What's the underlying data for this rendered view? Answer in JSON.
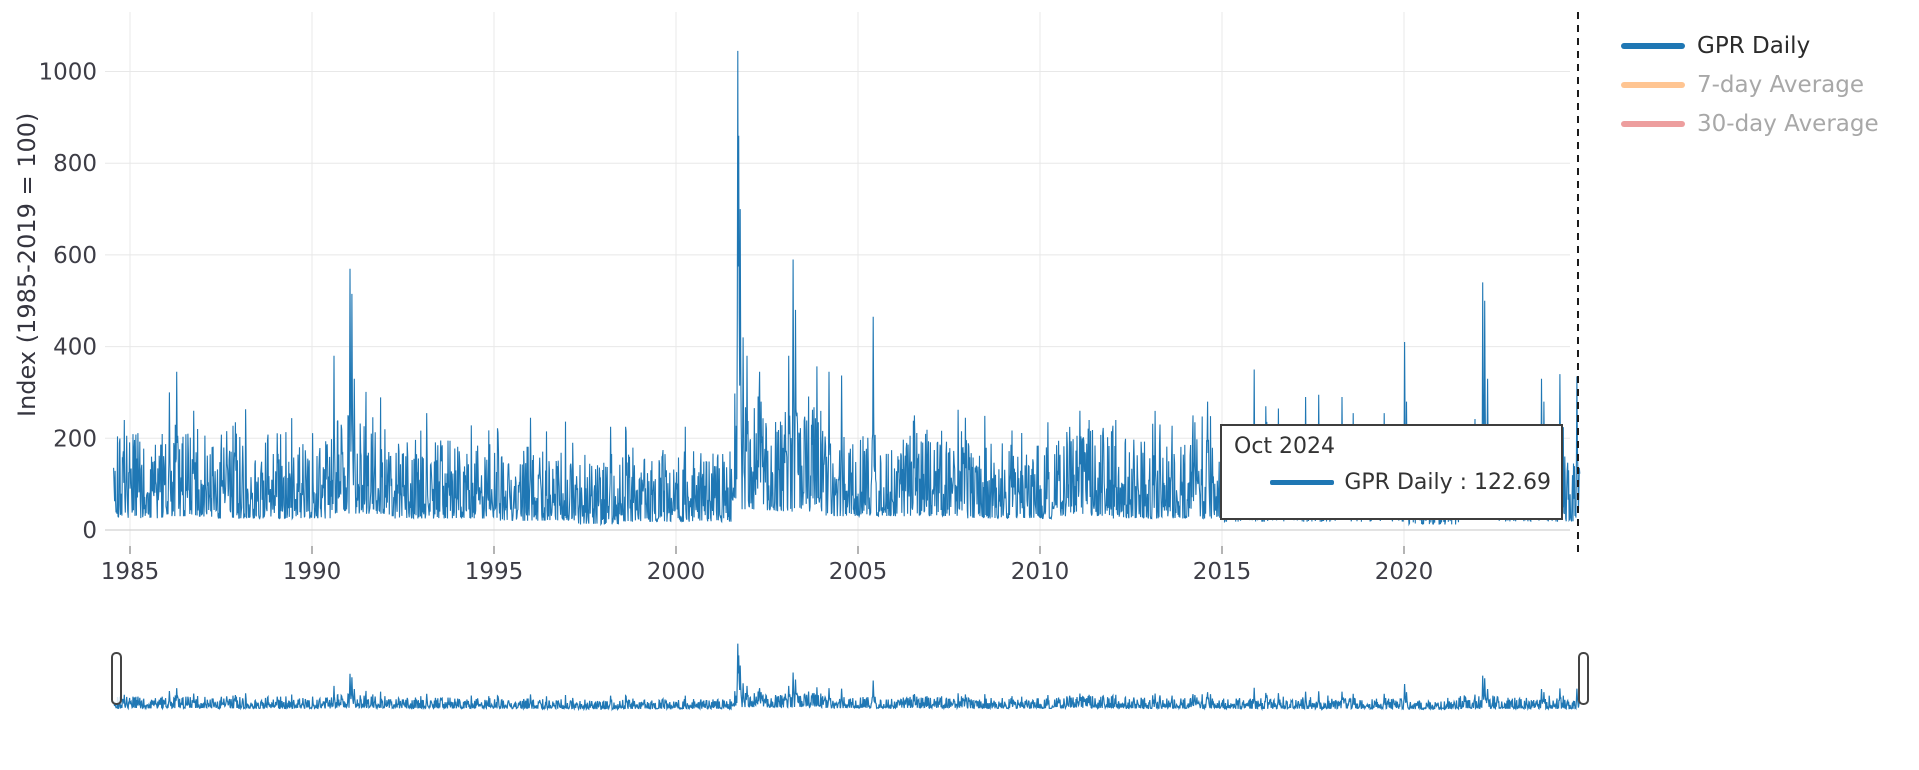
{
  "chart_data": {
    "type": "line",
    "title": "",
    "xlabel": "",
    "ylabel": "Index (1985-2019 = 100)",
    "x_ticks": [
      1985,
      1990,
      1995,
      2000,
      2005,
      2010,
      2015,
      2020
    ],
    "y_ticks": [
      0,
      200,
      400,
      600,
      800,
      1000
    ],
    "ylim": [
      -35,
      1130
    ],
    "x_domain": [
      1984.55,
      2025.1
    ],
    "grid": true,
    "legend_position": "top-right",
    "rangeslider": true,
    "dashed_boundary_year": 2024.78,
    "series": [
      {
        "name": "GPR Daily",
        "color": "#1f77b4",
        "visible": true
      },
      {
        "name": "7-day Average",
        "color": "#ff7f0e",
        "visible": false
      },
      {
        "name": "30-day Average",
        "color": "#d62728",
        "visible": false
      }
    ],
    "gpr_daily": {
      "start_year": 1984.55,
      "end_year": 2024.83,
      "last_value": 122.69,
      "samples_per_year": 75,
      "era_bands": [
        {
          "from": 1984.55,
          "to": 1986.0,
          "lo": 25,
          "hi": 215
        },
        {
          "from": 1986.0,
          "to": 1987.0,
          "lo": 30,
          "hi": 250
        },
        {
          "from": 1987.0,
          "to": 1990.5,
          "lo": 25,
          "hi": 212
        },
        {
          "from": 1990.5,
          "to": 1992.0,
          "lo": 35,
          "hi": 255
        },
        {
          "from": 1992.0,
          "to": 1995.0,
          "lo": 25,
          "hi": 200
        },
        {
          "from": 1995.0,
          "to": 1997.0,
          "lo": 20,
          "hi": 185
        },
        {
          "from": 1997.0,
          "to": 1998.5,
          "lo": 12,
          "hi": 150
        },
        {
          "from": 1998.5,
          "to": 2001.55,
          "lo": 18,
          "hi": 175
        },
        {
          "from": 2001.55,
          "to": 2002.5,
          "lo": 45,
          "hi": 300
        },
        {
          "from": 2002.5,
          "to": 2004.0,
          "lo": 40,
          "hi": 275
        },
        {
          "from": 2004.0,
          "to": 2008.0,
          "lo": 30,
          "hi": 220
        },
        {
          "from": 2008.0,
          "to": 2010.5,
          "lo": 25,
          "hi": 195
        },
        {
          "from": 2010.5,
          "to": 2012.0,
          "lo": 30,
          "hi": 228
        },
        {
          "from": 2012.0,
          "to": 2015.0,
          "lo": 25,
          "hi": 200
        },
        {
          "from": 2015.0,
          "to": 2020.0,
          "lo": 18,
          "hi": 188
        },
        {
          "from": 2020.0,
          "to": 2021.5,
          "lo": 12,
          "hi": 150
        },
        {
          "from": 2021.5,
          "to": 2022.6,
          "lo": 25,
          "hi": 225
        },
        {
          "from": 2022.6,
          "to": 2024.9,
          "lo": 18,
          "hi": 195
        }
      ],
      "spikes": [
        {
          "year": 1986.08,
          "value": 300
        },
        {
          "year": 1986.28,
          "value": 345
        },
        {
          "year": 1986.75,
          "value": 260
        },
        {
          "year": 1987.9,
          "value": 235
        },
        {
          "year": 1990.6,
          "value": 380
        },
        {
          "year": 1991.04,
          "value": 570
        },
        {
          "year": 1991.1,
          "value": 515
        },
        {
          "year": 1991.16,
          "value": 330
        },
        {
          "year": 1993.15,
          "value": 255
        },
        {
          "year": 1996.0,
          "value": 245
        },
        {
          "year": 1998.2,
          "value": 225
        },
        {
          "year": 1998.63,
          "value": 215
        },
        {
          "year": 2001.7,
          "value": 1045
        },
        {
          "year": 2001.72,
          "value": 860
        },
        {
          "year": 2001.76,
          "value": 700
        },
        {
          "year": 2001.85,
          "value": 420
        },
        {
          "year": 2001.95,
          "value": 380
        },
        {
          "year": 2002.3,
          "value": 345
        },
        {
          "year": 2003.1,
          "value": 380
        },
        {
          "year": 2003.22,
          "value": 590
        },
        {
          "year": 2003.28,
          "value": 480
        },
        {
          "year": 2004.2,
          "value": 345
        },
        {
          "year": 2004.55,
          "value": 337
        },
        {
          "year": 2005.42,
          "value": 465
        },
        {
          "year": 2006.55,
          "value": 250
        },
        {
          "year": 2007.95,
          "value": 245
        },
        {
          "year": 2011.1,
          "value": 260
        },
        {
          "year": 2011.35,
          "value": 240
        },
        {
          "year": 2013.3,
          "value": 230
        },
        {
          "year": 2014.25,
          "value": 235
        },
        {
          "year": 2014.6,
          "value": 280
        },
        {
          "year": 2015.88,
          "value": 350
        },
        {
          "year": 2016.2,
          "value": 270
        },
        {
          "year": 2016.55,
          "value": 265
        },
        {
          "year": 2017.3,
          "value": 290
        },
        {
          "year": 2017.65,
          "value": 295
        },
        {
          "year": 2018.3,
          "value": 290
        },
        {
          "year": 2018.6,
          "value": 255
        },
        {
          "year": 2019.45,
          "value": 255
        },
        {
          "year": 2020.02,
          "value": 410
        },
        {
          "year": 2020.07,
          "value": 280
        },
        {
          "year": 2021.65,
          "value": 230
        },
        {
          "year": 2022.16,
          "value": 540
        },
        {
          "year": 2022.22,
          "value": 500
        },
        {
          "year": 2022.3,
          "value": 330
        },
        {
          "year": 2023.78,
          "value": 330
        },
        {
          "year": 2023.85,
          "value": 280
        },
        {
          "year": 2024.28,
          "value": 340
        },
        {
          "year": 2024.75,
          "value": 335
        }
      ]
    }
  },
  "tooltip": {
    "title": "Oct 2024",
    "series": "GPR Daily",
    "separator": " : ",
    "value": "122.69",
    "color": "#1f77b4"
  },
  "colors": {
    "grid": "#e8e8e8",
    "zeroline": "#d2d2d2",
    "tick_text": "#3d3d46",
    "tick_mark": "#9a9a9a",
    "dashed_line": "#1a1a1a"
  }
}
